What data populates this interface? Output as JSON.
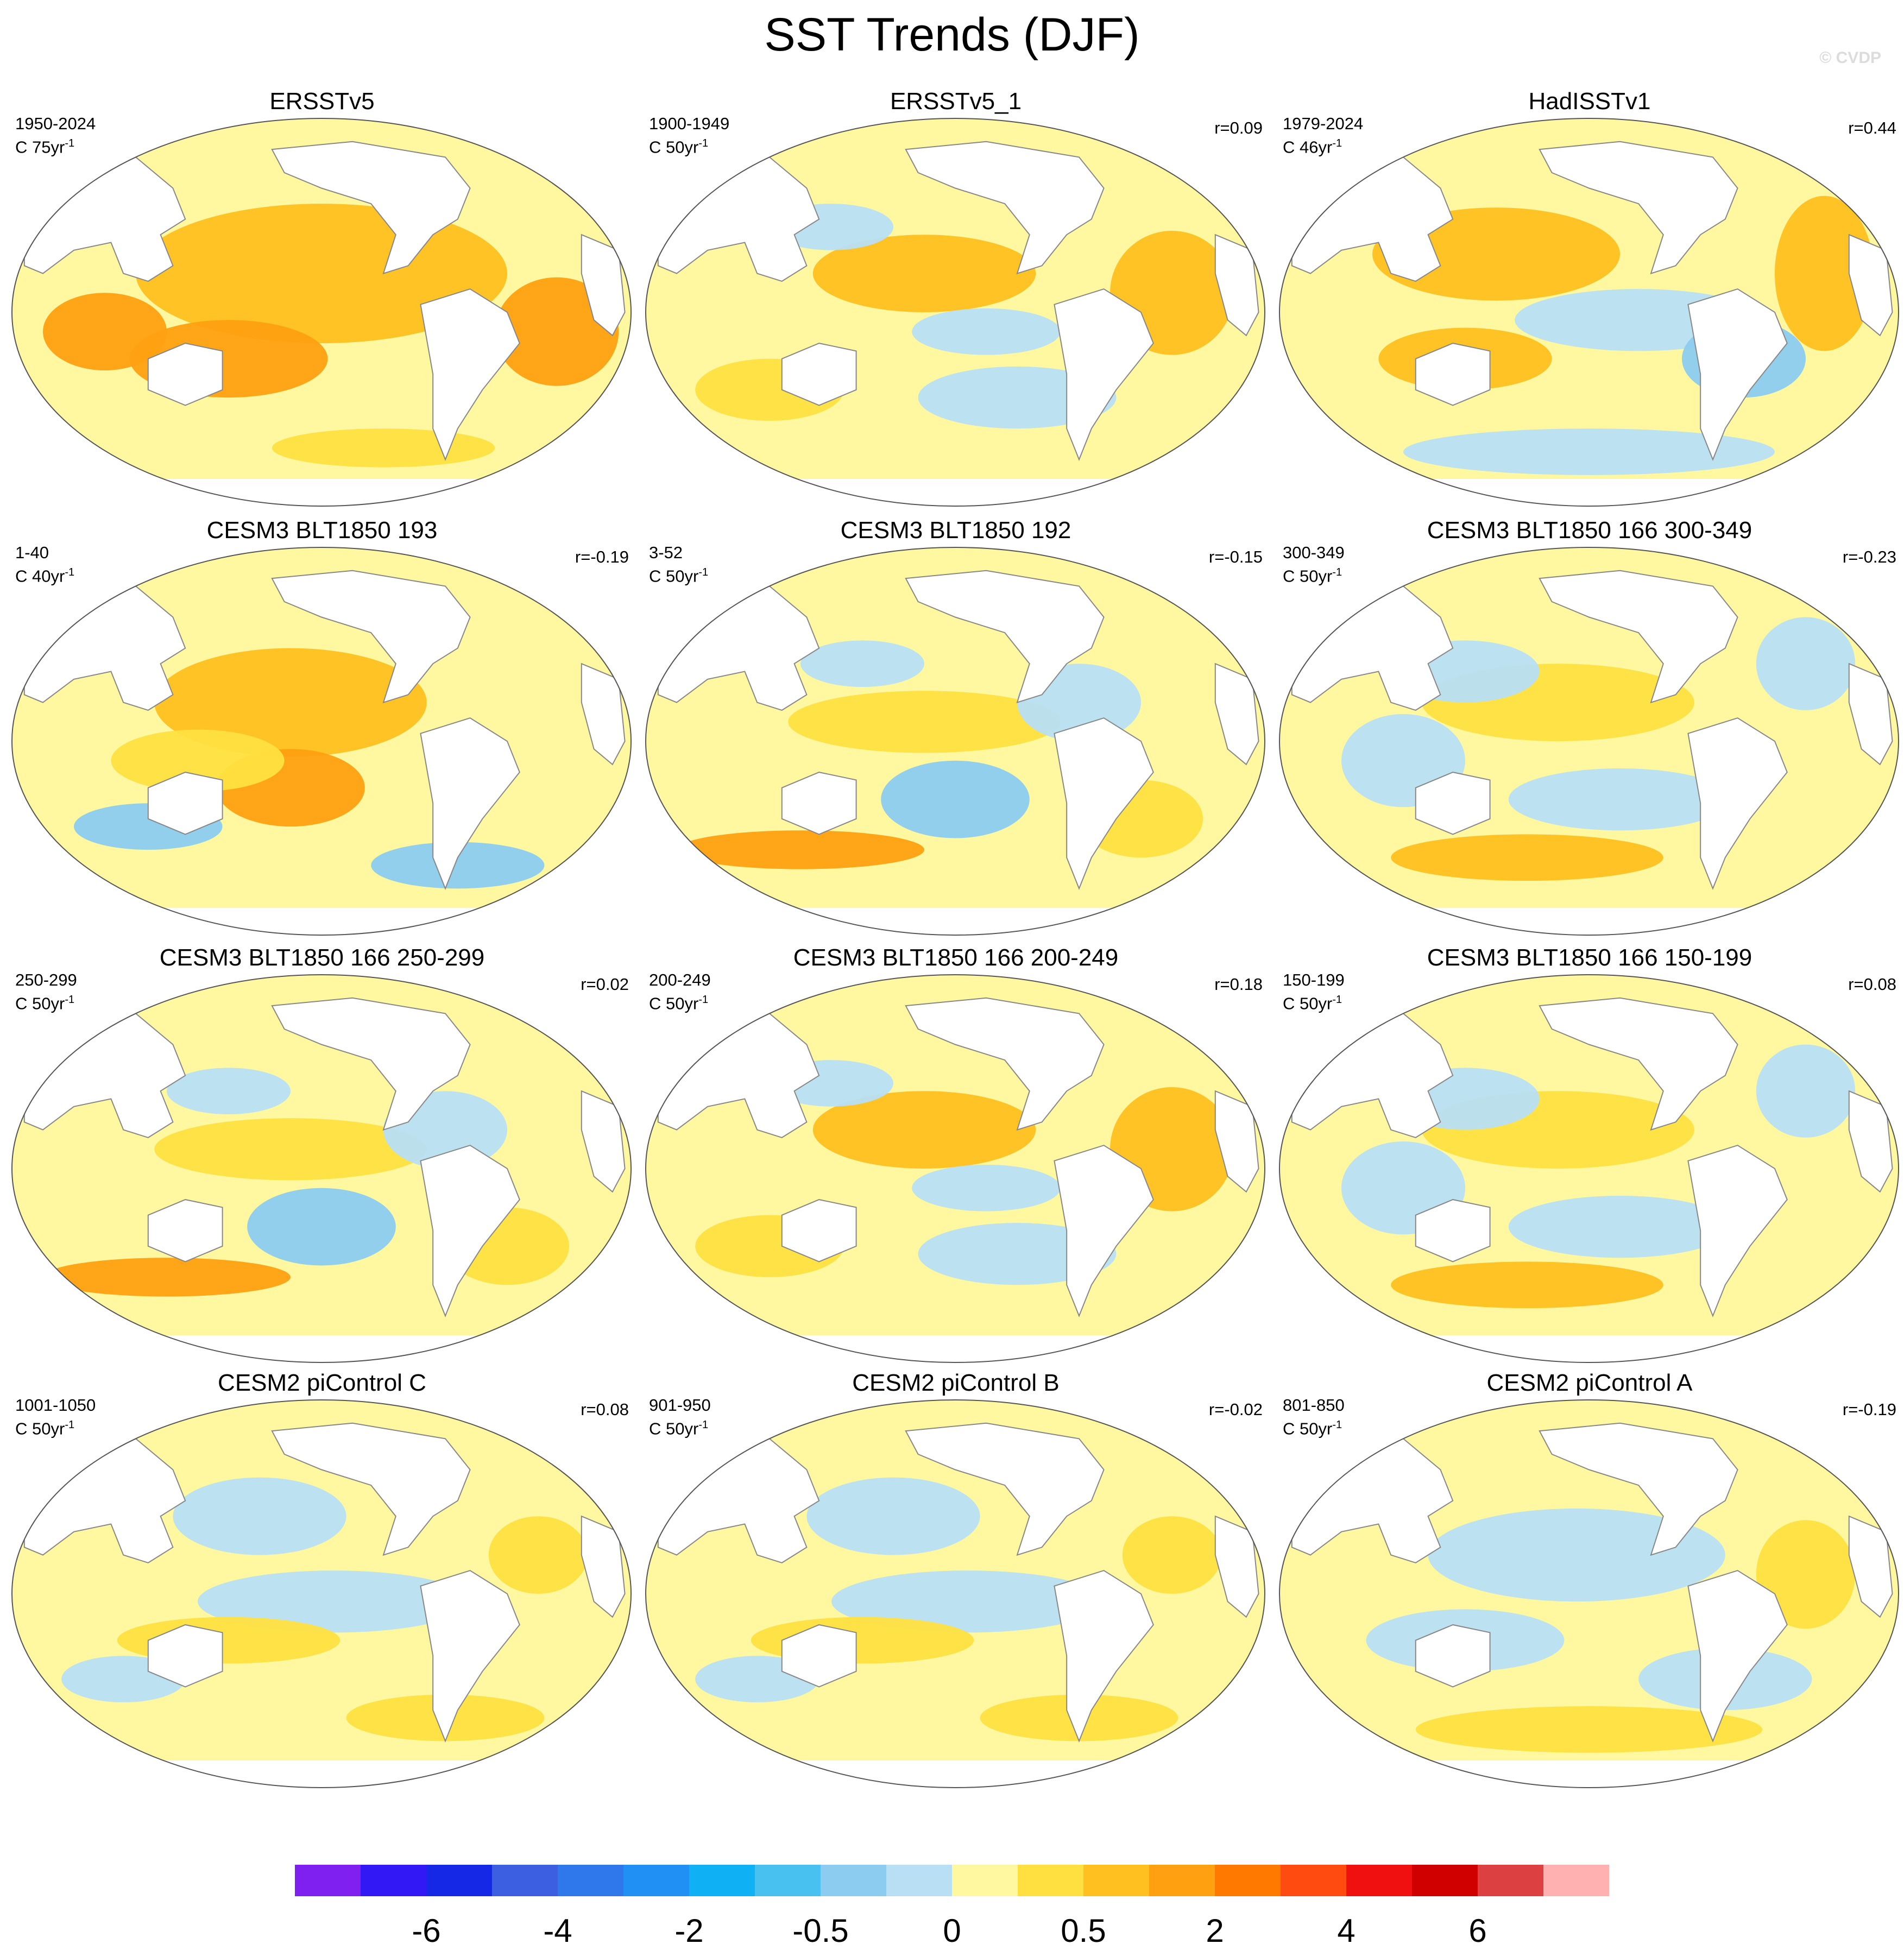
{
  "title": "SST Trends (DJF)",
  "credit": "© CVDP",
  "units_prefix": "C",
  "panels": [
    {
      "id": "p1",
      "title": "ERSSTv5",
      "period": "1950-2024",
      "scale": "75yr",
      "corr": "",
      "pattern": "warm"
    },
    {
      "id": "p2",
      "title": "ERSSTv5_1",
      "period": "1900-1949",
      "scale": "50yr",
      "corr": "r=0.09",
      "pattern": "mixed-warm"
    },
    {
      "id": "p3",
      "title": "HadISSTv1",
      "period": "1979-2024",
      "scale": "46yr",
      "corr": "r=0.44",
      "pattern": "lanina"
    },
    {
      "id": "p4",
      "title": "CESM3 BLT1850 193",
      "period": "1-40",
      "scale": "40yr",
      "corr": "r=-0.19",
      "pattern": "warm-strong"
    },
    {
      "id": "p5",
      "title": "CESM3 BLT1850 192",
      "period": "3-52",
      "scale": "50yr",
      "corr": "r=-0.15",
      "pattern": "mixed"
    },
    {
      "id": "p6",
      "title": "CESM3 BLT1850 166 300-349",
      "period": "300-349",
      "scale": "50yr",
      "corr": "r=-0.23",
      "pattern": "mixed-cool"
    },
    {
      "id": "p7",
      "title": "CESM3 BLT1850 166 250-299",
      "period": "250-299",
      "scale": "50yr",
      "corr": "r=0.02",
      "pattern": "mixed"
    },
    {
      "id": "p8",
      "title": "CESM3 BLT1850 166 200-249",
      "period": "200-249",
      "scale": "50yr",
      "corr": "r=0.18",
      "pattern": "mixed-warm"
    },
    {
      "id": "p9",
      "title": "CESM3 BLT1850 166 150-199",
      "period": "150-199",
      "scale": "50yr",
      "corr": "r=0.08",
      "pattern": "mixed-cool"
    },
    {
      "id": "p10",
      "title": "CESM2 piControl C",
      "period": "1001-1050",
      "scale": "50yr",
      "corr": "r=0.08",
      "pattern": "cool-tropics"
    },
    {
      "id": "p11",
      "title": "CESM2 piControl B",
      "period": "901-950",
      "scale": "50yr",
      "corr": "r=-0.02",
      "pattern": "cool-tropics"
    },
    {
      "id": "p12",
      "title": "CESM2 piControl A",
      "period": "801-850",
      "scale": "50yr",
      "corr": "r=-0.19",
      "pattern": "cool"
    }
  ],
  "colorbar": {
    "colors": [
      "#7f1ff0",
      "#3218f5",
      "#1428e6",
      "#3c5ee0",
      "#2e78ec",
      "#2190f5",
      "#10b0f5",
      "#48c0f0",
      "#8cccf0",
      "#b8dff4",
      "#fff8a0",
      "#ffe040",
      "#ffc020",
      "#ffa010",
      "#ff7800",
      "#ff4a10",
      "#f01010",
      "#d00000",
      "#dc4040",
      "#ffb0b0"
    ],
    "labels": [
      "-6",
      "-4",
      "-2",
      "-0.5",
      "0",
      "0.5",
      "2",
      "4",
      "6"
    ]
  },
  "legend": {
    "cold": "#8cccf0",
    "cool": "#b8dff4",
    "neutral": "#fff8a0",
    "warm": "#ffe040",
    "warmer": "#ffc020",
    "hot": "#ffa010",
    "land": "#ffffff",
    "coast": "#888888"
  }
}
